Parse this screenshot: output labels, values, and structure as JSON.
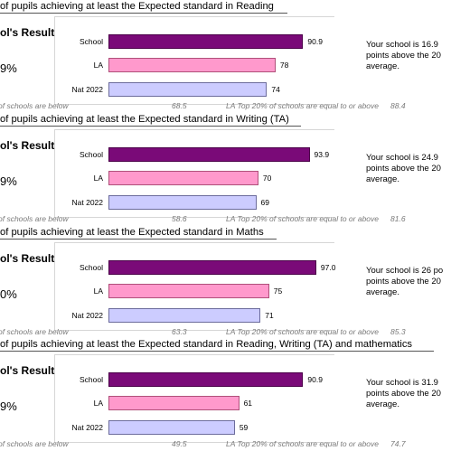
{
  "chart_data": [
    {
      "type": "bar",
      "orientation": "horizontal",
      "title": "of pupils achieving at least the Expected standard in Reading",
      "result_label": "ol's Result",
      "percent_fragment": "9%",
      "categories": [
        "School",
        "LA",
        "Nat 2022"
      ],
      "values": [
        90.9,
        78,
        74
      ],
      "value_labels": [
        "90.9",
        "78",
        "74"
      ],
      "colors": [
        "#7a0a78",
        "#ff99cc",
        "#ccccff"
      ],
      "comment": [
        "Your school is 16.9",
        "points above the 20",
        "average."
      ],
      "footer": {
        "below_text": "of schools are below",
        "below_value": "68.5",
        "top_text": "LA Top 20% of schools are equal to or above",
        "top_value": "88.4"
      },
      "xlim": [
        0,
        120
      ]
    },
    {
      "type": "bar",
      "orientation": "horizontal",
      "title": "of pupils achieving at least the Expected standard in Writing (TA)",
      "result_label": "ol's Result",
      "percent_fragment": "9%",
      "categories": [
        "School",
        "LA",
        "Nat 2022"
      ],
      "values": [
        93.9,
        70,
        69
      ],
      "value_labels": [
        "93.9",
        "70",
        "69"
      ],
      "colors": [
        "#7a0a78",
        "#ff99cc",
        "#ccccff"
      ],
      "comment": [
        "Your school is 24.9",
        "points above the 20",
        "average."
      ],
      "footer": {
        "below_text": "of schools are below",
        "below_value": "58.6",
        "top_text": "LA Top 20% of schools are equal to or above",
        "top_value": "81.6"
      },
      "xlim": [
        0,
        120
      ]
    },
    {
      "type": "bar",
      "orientation": "horizontal",
      "title": "of pupils achieving at least the Expected standard in Maths",
      "result_label": "ol's Result",
      "percent_fragment": "0%",
      "categories": [
        "School",
        "LA",
        "Nat 2022"
      ],
      "values": [
        97.0,
        75,
        71
      ],
      "value_labels": [
        "97.0",
        "75",
        "71"
      ],
      "colors": [
        "#7a0a78",
        "#ff99cc",
        "#ccccff"
      ],
      "comment": [
        "Your school is 26 po",
        "points above the 20",
        "average."
      ],
      "footer": {
        "below_text": "of schools are below",
        "below_value": "63.3",
        "top_text": "LA Top 20% of schools are equal to or above",
        "top_value": "85.3"
      },
      "xlim": [
        0,
        120
      ]
    },
    {
      "type": "bar",
      "orientation": "horizontal",
      "title": "of pupils achieving at least the Expected standard in Reading, Writing (TA) and mathematics",
      "result_label": "ol's Result",
      "percent_fragment": "9%",
      "categories": [
        "School",
        "LA",
        "Nat 2022"
      ],
      "values": [
        90.9,
        61,
        59
      ],
      "value_labels": [
        "90.9",
        "61",
        "59"
      ],
      "colors": [
        "#7a0a78",
        "#ff99cc",
        "#ccccff"
      ],
      "comment": [
        "Your school is 31.9",
        "points above the 20",
        "average."
      ],
      "footer": {
        "below_text": "of schools are below",
        "below_value": "49.5",
        "top_text": "LA Top 20% of schools are equal to or above",
        "top_value": "74.7"
      },
      "xlim": [
        0,
        120
      ]
    }
  ]
}
